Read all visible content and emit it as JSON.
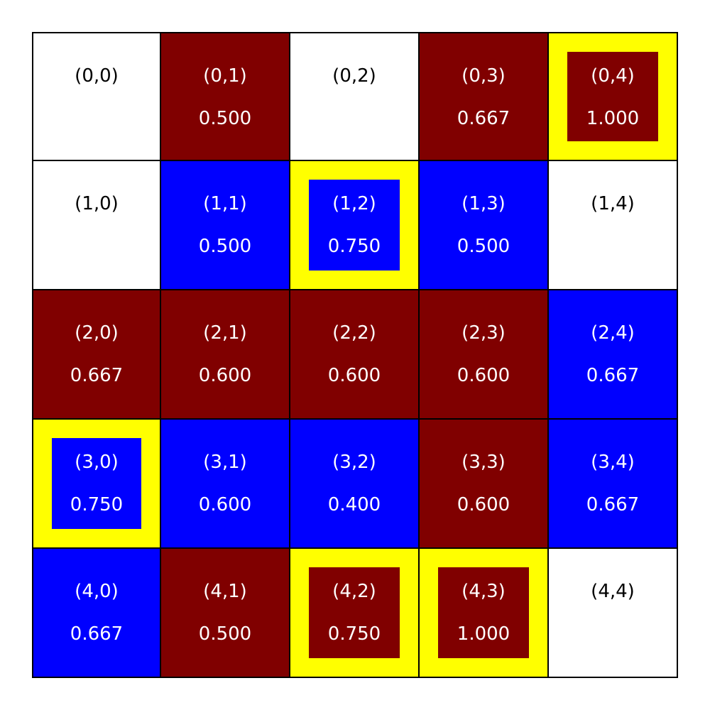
{
  "colors": {
    "white": "#ffffff",
    "red": "#800000",
    "blue": "#0000ff",
    "highlight": "#ffff00",
    "text_dark": "#000000",
    "text_light": "#ffffff"
  },
  "grid": {
    "rows": 5,
    "cols": 5,
    "cells": [
      {
        "label": "(0,0)",
        "value": "",
        "color": "white",
        "highlight": false
      },
      {
        "label": "(0,1)",
        "value": "0.500",
        "color": "red",
        "highlight": false
      },
      {
        "label": "(0,2)",
        "value": "",
        "color": "white",
        "highlight": false
      },
      {
        "label": "(0,3)",
        "value": "0.667",
        "color": "red",
        "highlight": false
      },
      {
        "label": "(0,4)",
        "value": "1.000",
        "color": "red",
        "highlight": true
      },
      {
        "label": "(1,0)",
        "value": "",
        "color": "white",
        "highlight": false
      },
      {
        "label": "(1,1)",
        "value": "0.500",
        "color": "blue",
        "highlight": false
      },
      {
        "label": "(1,2)",
        "value": "0.750",
        "color": "blue",
        "highlight": true
      },
      {
        "label": "(1,3)",
        "value": "0.500",
        "color": "blue",
        "highlight": false
      },
      {
        "label": "(1,4)",
        "value": "",
        "color": "white",
        "highlight": false
      },
      {
        "label": "(2,0)",
        "value": "0.667",
        "color": "red",
        "highlight": false
      },
      {
        "label": "(2,1)",
        "value": "0.600",
        "color": "red",
        "highlight": false
      },
      {
        "label": "(2,2)",
        "value": "0.600",
        "color": "red",
        "highlight": false
      },
      {
        "label": "(2,3)",
        "value": "0.600",
        "color": "red",
        "highlight": false
      },
      {
        "label": "(2,4)",
        "value": "0.667",
        "color": "blue",
        "highlight": false
      },
      {
        "label": "(3,0)",
        "value": "0.750",
        "color": "blue",
        "highlight": true
      },
      {
        "label": "(3,1)",
        "value": "0.600",
        "color": "blue",
        "highlight": false
      },
      {
        "label": "(3,2)",
        "value": "0.400",
        "color": "blue",
        "highlight": false
      },
      {
        "label": "(3,3)",
        "value": "0.600",
        "color": "red",
        "highlight": false
      },
      {
        "label": "(3,4)",
        "value": "0.667",
        "color": "blue",
        "highlight": false
      },
      {
        "label": "(4,0)",
        "value": "0.667",
        "color": "blue",
        "highlight": false
      },
      {
        "label": "(4,1)",
        "value": "0.500",
        "color": "red",
        "highlight": false
      },
      {
        "label": "(4,2)",
        "value": "0.750",
        "color": "red",
        "highlight": true
      },
      {
        "label": "(4,3)",
        "value": "1.000",
        "color": "red",
        "highlight": true
      },
      {
        "label": "(4,4)",
        "value": "",
        "color": "white",
        "highlight": false
      }
    ]
  }
}
